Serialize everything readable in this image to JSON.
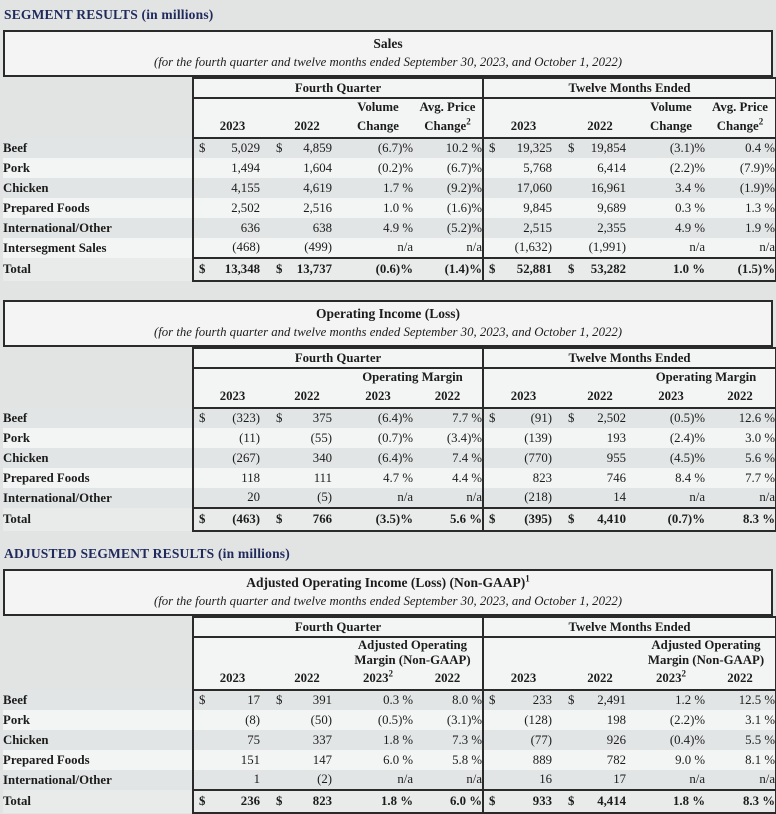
{
  "page": {
    "section1_heading": "SEGMENT RESULTS (in millions)",
    "section2_heading": "ADJUSTED SEGMENT RESULTS (in millions)",
    "subtitle": "(for the fourth quarter and twelve months ended September 30, 2023, and October 1, 2022)",
    "currency_symbol": "$",
    "group_headers": {
      "fourth_quarter": "Fourth Quarter",
      "twelve_months": "Twelve Months Ended"
    }
  },
  "colors": {
    "section_heading": "#1f2a5c",
    "border": "#2a2a2a",
    "row_stripe": "#e2e5e5",
    "row_plain": "#f3f4f4",
    "page_background": "#e2e3e3"
  },
  "tables": {
    "sales": {
      "title": "Sales",
      "title_sup": "",
      "columns_two_line": [
        {
          "top": "",
          "bottom": "2023",
          "sup": ""
        },
        {
          "top": "",
          "bottom": "2022",
          "sup": ""
        },
        {
          "top": "Volume",
          "bottom": "Change",
          "sup": ""
        },
        {
          "top": "Avg. Price",
          "bottom": "Change",
          "sup": "2"
        }
      ],
      "rows": [
        {
          "label": "Beef",
          "dollar": true,
          "fq": [
            "5,029",
            "4,859",
            "(6.7)%",
            "10.2 %"
          ],
          "tme": [
            "19,325",
            "19,854",
            "(3.1)%",
            "0.4 %"
          ]
        },
        {
          "label": "Pork",
          "dollar": false,
          "fq": [
            "1,494",
            "1,604",
            "(0.2)%",
            "(6.7)%"
          ],
          "tme": [
            "5,768",
            "6,414",
            "(2.2)%",
            "(7.9)%"
          ]
        },
        {
          "label": "Chicken",
          "dollar": false,
          "fq": [
            "4,155",
            "4,619",
            "1.7 %",
            "(9.2)%"
          ],
          "tme": [
            "17,060",
            "16,961",
            "3.4 %",
            "(1.9)%"
          ]
        },
        {
          "label": "Prepared Foods",
          "dollar": false,
          "fq": [
            "2,502",
            "2,516",
            "1.0 %",
            "(1.6)%"
          ],
          "tme": [
            "9,845",
            "9,689",
            "0.3 %",
            "1.3 %"
          ]
        },
        {
          "label": "International/Other",
          "dollar": false,
          "fq": [
            "636",
            "638",
            "4.9 %",
            "(5.2)%"
          ],
          "tme": [
            "2,515",
            "2,355",
            "4.9 %",
            "1.9 %"
          ]
        },
        {
          "label": "Intersegment Sales",
          "dollar": false,
          "fq": [
            "(468)",
            "(499)",
            "n/a",
            "n/a"
          ],
          "tme": [
            "(1,632)",
            "(1,991)",
            "n/a",
            "n/a"
          ]
        }
      ],
      "total": {
        "label": "Total",
        "dollar": true,
        "fq": [
          "13,348",
          "13,737",
          "(0.6)%",
          "(1.4)%"
        ],
        "tme": [
          "52,881",
          "53,282",
          "1.0 %",
          "(1.5)%"
        ]
      }
    },
    "operating": {
      "title": "Operating Income (Loss)",
      "title_sup": "",
      "span_label_lines": [
        "Operating Margin"
      ],
      "years": [
        {
          "t": "2023",
          "sup": ""
        },
        {
          "t": "2022",
          "sup": ""
        },
        {
          "t": "2023",
          "sup": ""
        },
        {
          "t": "2022",
          "sup": ""
        }
      ],
      "rows": [
        {
          "label": "Beef",
          "dollar": true,
          "fq": [
            "(323)",
            "375",
            "(6.4)%",
            "7.7 %"
          ],
          "tme": [
            "(91)",
            "2,502",
            "(0.5)%",
            "12.6 %"
          ]
        },
        {
          "label": "Pork",
          "dollar": false,
          "fq": [
            "(11)",
            "(55)",
            "(0.7)%",
            "(3.4)%"
          ],
          "tme": [
            "(139)",
            "193",
            "(2.4)%",
            "3.0 %"
          ]
        },
        {
          "label": "Chicken",
          "dollar": false,
          "fq": [
            "(267)",
            "340",
            "(6.4)%",
            "7.4 %"
          ],
          "tme": [
            "(770)",
            "955",
            "(4.5)%",
            "5.6 %"
          ]
        },
        {
          "label": "Prepared Foods",
          "dollar": false,
          "fq": [
            "118",
            "111",
            "4.7 %",
            "4.4 %"
          ],
          "tme": [
            "823",
            "746",
            "8.4 %",
            "7.7 %"
          ]
        },
        {
          "label": "International/Other",
          "dollar": false,
          "fq": [
            "20",
            "(5)",
            "n/a",
            "n/a"
          ],
          "tme": [
            "(218)",
            "14",
            "n/a",
            "n/a"
          ]
        }
      ],
      "total": {
        "label": "Total",
        "dollar": true,
        "fq": [
          "(463)",
          "766",
          "(3.5)%",
          "5.6 %"
        ],
        "tme": [
          "(395)",
          "4,410",
          "(0.7)%",
          "8.3 %"
        ]
      }
    },
    "adjusted": {
      "title": "Adjusted Operating Income (Loss) (Non-GAAP)",
      "title_sup": "1",
      "span_label_lines": [
        "Adjusted Operating",
        "Margin (Non-GAAP)"
      ],
      "years": [
        {
          "t": "2023",
          "sup": ""
        },
        {
          "t": "2022",
          "sup": ""
        },
        {
          "t": "2023",
          "sup": "2"
        },
        {
          "t": "2022",
          "sup": ""
        }
      ],
      "rows": [
        {
          "label": "Beef",
          "dollar": true,
          "fq": [
            "17",
            "391",
            "0.3 %",
            "8.0 %"
          ],
          "tme": [
            "233",
            "2,491",
            "1.2 %",
            "12.5 %"
          ]
        },
        {
          "label": "Pork",
          "dollar": false,
          "fq": [
            "(8)",
            "(50)",
            "(0.5)%",
            "(3.1)%"
          ],
          "tme": [
            "(128)",
            "198",
            "(2.2)%",
            "3.1 %"
          ]
        },
        {
          "label": "Chicken",
          "dollar": false,
          "fq": [
            "75",
            "337",
            "1.8 %",
            "7.3 %"
          ],
          "tme": [
            "(77)",
            "926",
            "(0.4)%",
            "5.5 %"
          ]
        },
        {
          "label": "Prepared Foods",
          "dollar": false,
          "fq": [
            "151",
            "147",
            "6.0 %",
            "5.8 %"
          ],
          "tme": [
            "889",
            "782",
            "9.0 %",
            "8.1 %"
          ]
        },
        {
          "label": "International/Other",
          "dollar": false,
          "fq": [
            "1",
            "(2)",
            "n/a",
            "n/a"
          ],
          "tme": [
            "16",
            "17",
            "n/a",
            "n/a"
          ]
        }
      ],
      "total": {
        "label": "Total",
        "dollar": true,
        "fq": [
          "236",
          "823",
          "1.8 %",
          "6.0 %"
        ],
        "tme": [
          "933",
          "4,414",
          "1.8 %",
          "8.3 %"
        ]
      }
    }
  }
}
